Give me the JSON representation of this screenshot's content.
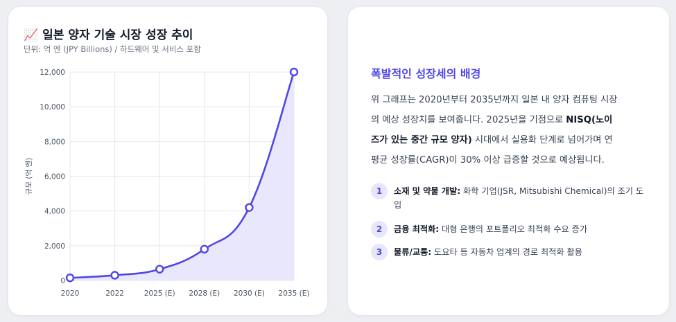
{
  "chart_card": {
    "emoji": "📈",
    "title": "일본 양자 기술 시장 성장 추이",
    "subtitle": "단위: 억 엔 (JPY Billions) / 하드웨어 및 서비스 포함"
  },
  "chart_data": {
    "type": "area",
    "x": [
      "2020",
      "2022",
      "2025 (E)",
      "2028 (E)",
      "2030 (E)",
      "2035 (E)"
    ],
    "y": [
      150,
      300,
      650,
      1800,
      4200,
      12000
    ],
    "ylabel": "규모 (억 엔)",
    "xlabel": "",
    "ylim": [
      0,
      12000
    ],
    "yticks": [
      "0",
      "2,000",
      "4,000",
      "6,000",
      "8,000",
      "10,000",
      "12,000"
    ],
    "yticks_values": [
      0,
      2000,
      4000,
      6000,
      8000,
      10000,
      12000
    ],
    "grid": true,
    "colors": {
      "line": "#4f46e5",
      "fill": "#e9e7fb",
      "grid": "#e5e7eb"
    }
  },
  "info_card": {
    "title": "폭발적인 성장세의 배경",
    "body_lines": [
      {
        "text": "위 그래프는 2020년부터 2035년까지 일본 내 양자 컴퓨팅 시장"
      },
      {
        "text": "의 예상 성장치를 보여줍니다. 2025년을 기점으로 ",
        "bold": "NISQ(노이"
      },
      {
        "bold": "즈가 있는 중간 규모 양자)",
        "text": " 시대에서 실용화 단계로 넘어가며 연"
      },
      {
        "text": "평균 성장률(CAGR)이 30% 이상 급증할 것으로 예상됩니다."
      }
    ],
    "factors": [
      {
        "num": "1",
        "label": "소재 및 약물 개발:",
        "text": " 화학 기업(JSR, Mitsubishi Chemical)의 조기 도입"
      },
      {
        "num": "2",
        "label": "금융 최적화:",
        "text": " 대형 은행의 포트폴리오 최적화 수요 증가"
      },
      {
        "num": "3",
        "label": "물류/교통:",
        "text": " 도요타 등 자동차 업계의 경로 최적화 활용"
      }
    ]
  }
}
